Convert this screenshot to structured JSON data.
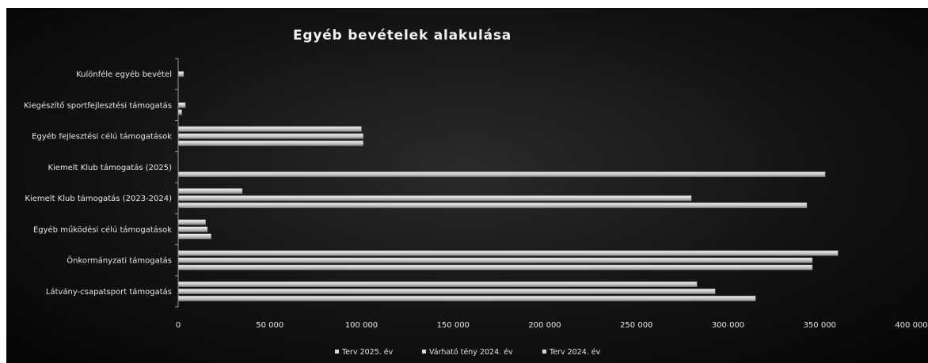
{
  "chart_data": {
    "type": "bar",
    "orientation": "horizontal",
    "title": "Egyéb bevételek alakulása",
    "categories": [
      "Kulönféle egyéb bevétel",
      "Kiegészítő sportfejlesztési támogatás",
      "Egyéb fejlesztési célú támogatások",
      "Kiemelt Klub támogatás (2025)",
      "Kiemelt Klub támogatás (2023-2024)",
      "Egyéb működési célú támogatások",
      "Önkormányzati támogatás",
      "Látvány-csapatsport támogatás"
    ],
    "series": [
      {
        "name": "Terv 2025. év",
        "values": [
          0,
          0,
          100000,
          0,
          35000,
          15000,
          360000,
          283000
        ]
      },
      {
        "name": "Várható tény 2024. év",
        "values": [
          3000,
          4000,
          101000,
          0,
          280000,
          16000,
          346000,
          293000
        ]
      },
      {
        "name": "Terv 2024. év",
        "values": [
          0,
          2000,
          101000,
          353000,
          343000,
          18000,
          346000,
          315000
        ]
      }
    ],
    "xlim": [
      0,
      400000
    ],
    "x_ticks": [
      "0",
      "50 000",
      "100 000",
      "150 000",
      "200 000",
      "250 000",
      "300 000",
      "350 000",
      "400 000"
    ],
    "legend_position": "bottom",
    "grid": false
  }
}
